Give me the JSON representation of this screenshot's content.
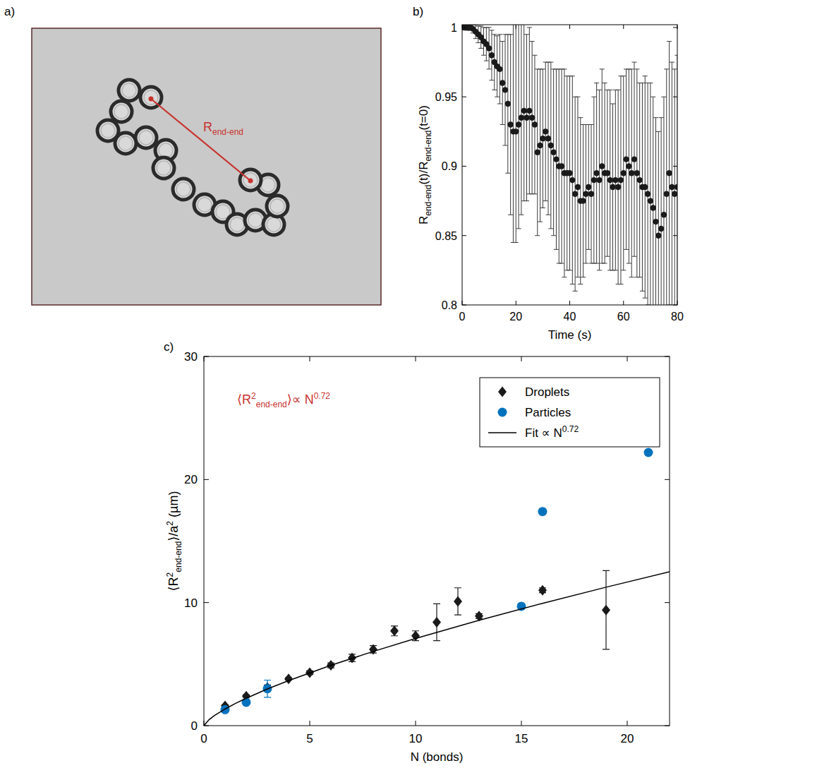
{
  "chart_data": [
    {
      "type": "image",
      "panel": "a)",
      "annotation": [
        "R",
        "end-end"
      ]
    },
    {
      "type": "scatter",
      "panel": "b)",
      "x_label": "Time (s)",
      "y_label": [
        "R",
        "end-end",
        "(t)/R",
        "end-end",
        "(t=0)"
      ],
      "xlim": [
        0,
        80
      ],
      "ylim": [
        0.8,
        1.002
      ],
      "xticks": [
        0,
        20,
        40,
        60,
        80
      ],
      "yticks": [
        0.8,
        0.85,
        0.9,
        0.95,
        1
      ],
      "marker": "circle",
      "color": "#1a1a1a",
      "x": [
        0,
        1,
        2,
        3,
        4,
        5,
        6,
        7,
        8,
        9,
        10,
        11,
        12,
        13,
        14,
        15,
        16,
        17,
        18,
        19,
        20,
        21,
        22,
        23,
        24,
        25,
        26,
        27,
        28,
        29,
        30,
        31,
        32,
        33,
        34,
        35,
        36,
        37,
        38,
        39,
        40,
        41,
        42,
        43,
        44,
        45,
        46,
        47,
        48,
        49,
        50,
        51,
        52,
        53,
        54,
        55,
        56,
        57,
        58,
        59,
        60,
        61,
        62,
        63,
        64,
        65,
        66,
        67,
        68,
        69,
        70,
        71,
        72,
        73,
        74,
        75,
        76,
        77,
        78,
        79,
        80
      ],
      "values": [
        1,
        1,
        1,
        1,
        0.999,
        0.997,
        0.995,
        0.993,
        0.99,
        0.988,
        0.985,
        0.98,
        0.975,
        0.972,
        0.97,
        0.96,
        0.955,
        0.945,
        0.93,
        0.925,
        0.925,
        0.93,
        0.935,
        0.94,
        0.935,
        0.94,
        0.935,
        0.93,
        0.91,
        0.915,
        0.92,
        0.925,
        0.92,
        0.915,
        0.91,
        0.905,
        0.9,
        0.9,
        0.895,
        0.895,
        0.895,
        0.89,
        0.88,
        0.885,
        0.875,
        0.875,
        0.88,
        0.885,
        0.88,
        0.89,
        0.895,
        0.89,
        0.9,
        0.895,
        0.895,
        0.89,
        0.885,
        0.89,
        0.885,
        0.89,
        0.895,
        0.905,
        0.9,
        0.895,
        0.905,
        0.895,
        0.89,
        0.885,
        0.885,
        0.88,
        0.875,
        0.87,
        0.86,
        0.85,
        0.855,
        0.865,
        0.88,
        0.895,
        0.885,
        0.88,
        0.885
      ],
      "errors": [
        0.001,
        0.001,
        0.002,
        0.002,
        0.003,
        0.005,
        0.006,
        0.008,
        0.01,
        0.012,
        0.015,
        0.018,
        0.02,
        0.022,
        0.025,
        0.03,
        0.04,
        0.05,
        0.065,
        0.08,
        0.08,
        0.075,
        0.07,
        0.065,
        0.06,
        0.06,
        0.055,
        0.05,
        0.06,
        0.055,
        0.05,
        0.05,
        0.055,
        0.06,
        0.06,
        0.065,
        0.07,
        0.07,
        0.075,
        0.07,
        0.07,
        0.075,
        0.07,
        0.065,
        0.06,
        0.055,
        0.05,
        0.045,
        0.05,
        0.06,
        0.065,
        0.065,
        0.07,
        0.065,
        0.06,
        0.065,
        0.06,
        0.065,
        0.07,
        0.075,
        0.07,
        0.065,
        0.07,
        0.075,
        0.07,
        0.075,
        0.07,
        0.075,
        0.08,
        0.08,
        0.085,
        0.08,
        0.075,
        0.075,
        0.08,
        0.085,
        0.09,
        0.095,
        0.09,
        0.09,
        0.095
      ]
    },
    {
      "type": "scatter",
      "panel": "c)",
      "x_label": "N (bonds)",
      "y_label": [
        "⟨R",
        "2",
        "end-end",
        "⟩/a",
        "2",
        " (µm)"
      ],
      "annotation": [
        "⟨R",
        "2",
        "end-end",
        "⟩∝ N",
        "0.72"
      ],
      "xlim": [
        0,
        22
      ],
      "ylim": [
        0,
        30
      ],
      "xticks": [
        0,
        5,
        10,
        15,
        20
      ],
      "yticks": [
        0,
        10,
        20,
        30
      ],
      "legend": "upper right",
      "series": [
        {
          "name": "Droplets",
          "color": "#1a1a1a",
          "marker": "diamond",
          "x": [
            1,
            2,
            3,
            4,
            5,
            6,
            7,
            8,
            9,
            10,
            11,
            12,
            13,
            16,
            19
          ],
          "values": [
            1.6,
            2.4,
            3.1,
            3.8,
            4.3,
            4.9,
            5.5,
            6.2,
            7.7,
            7.3,
            8.4,
            10.1,
            8.9,
            11.0,
            9.4
          ],
          "errors": [
            0.1,
            0.1,
            0.2,
            0.1,
            0.15,
            0.2,
            0.3,
            0.3,
            0.4,
            0.4,
            1.5,
            1.1,
            0.2,
            0.2,
            3.2
          ]
        },
        {
          "name": "Particles",
          "color": "#0072bd",
          "marker": "circle",
          "x": [
            1,
            2,
            3,
            15,
            16,
            21
          ],
          "values": [
            1.3,
            1.9,
            3.0,
            9.7,
            17.4,
            22.2
          ],
          "errors": [
            0.1,
            0.1,
            0.7,
            0,
            0,
            0
          ]
        },
        {
          "name": [
            "Fit ∝ N",
            "0.72"
          ],
          "type": "line",
          "color": "#000000",
          "line_style": "solid",
          "x": [
            0,
            0.25,
            0.5,
            1,
            1.5,
            2,
            3,
            4,
            6,
            8,
            10,
            13,
            16,
            19,
            22
          ],
          "values": [
            0,
            0.5,
            0.82,
            1.35,
            1.81,
            2.22,
            2.98,
            3.66,
            4.9,
            6.03,
            7.08,
            8.56,
            9.94,
            11.25,
            12.5
          ]
        }
      ]
    }
  ]
}
